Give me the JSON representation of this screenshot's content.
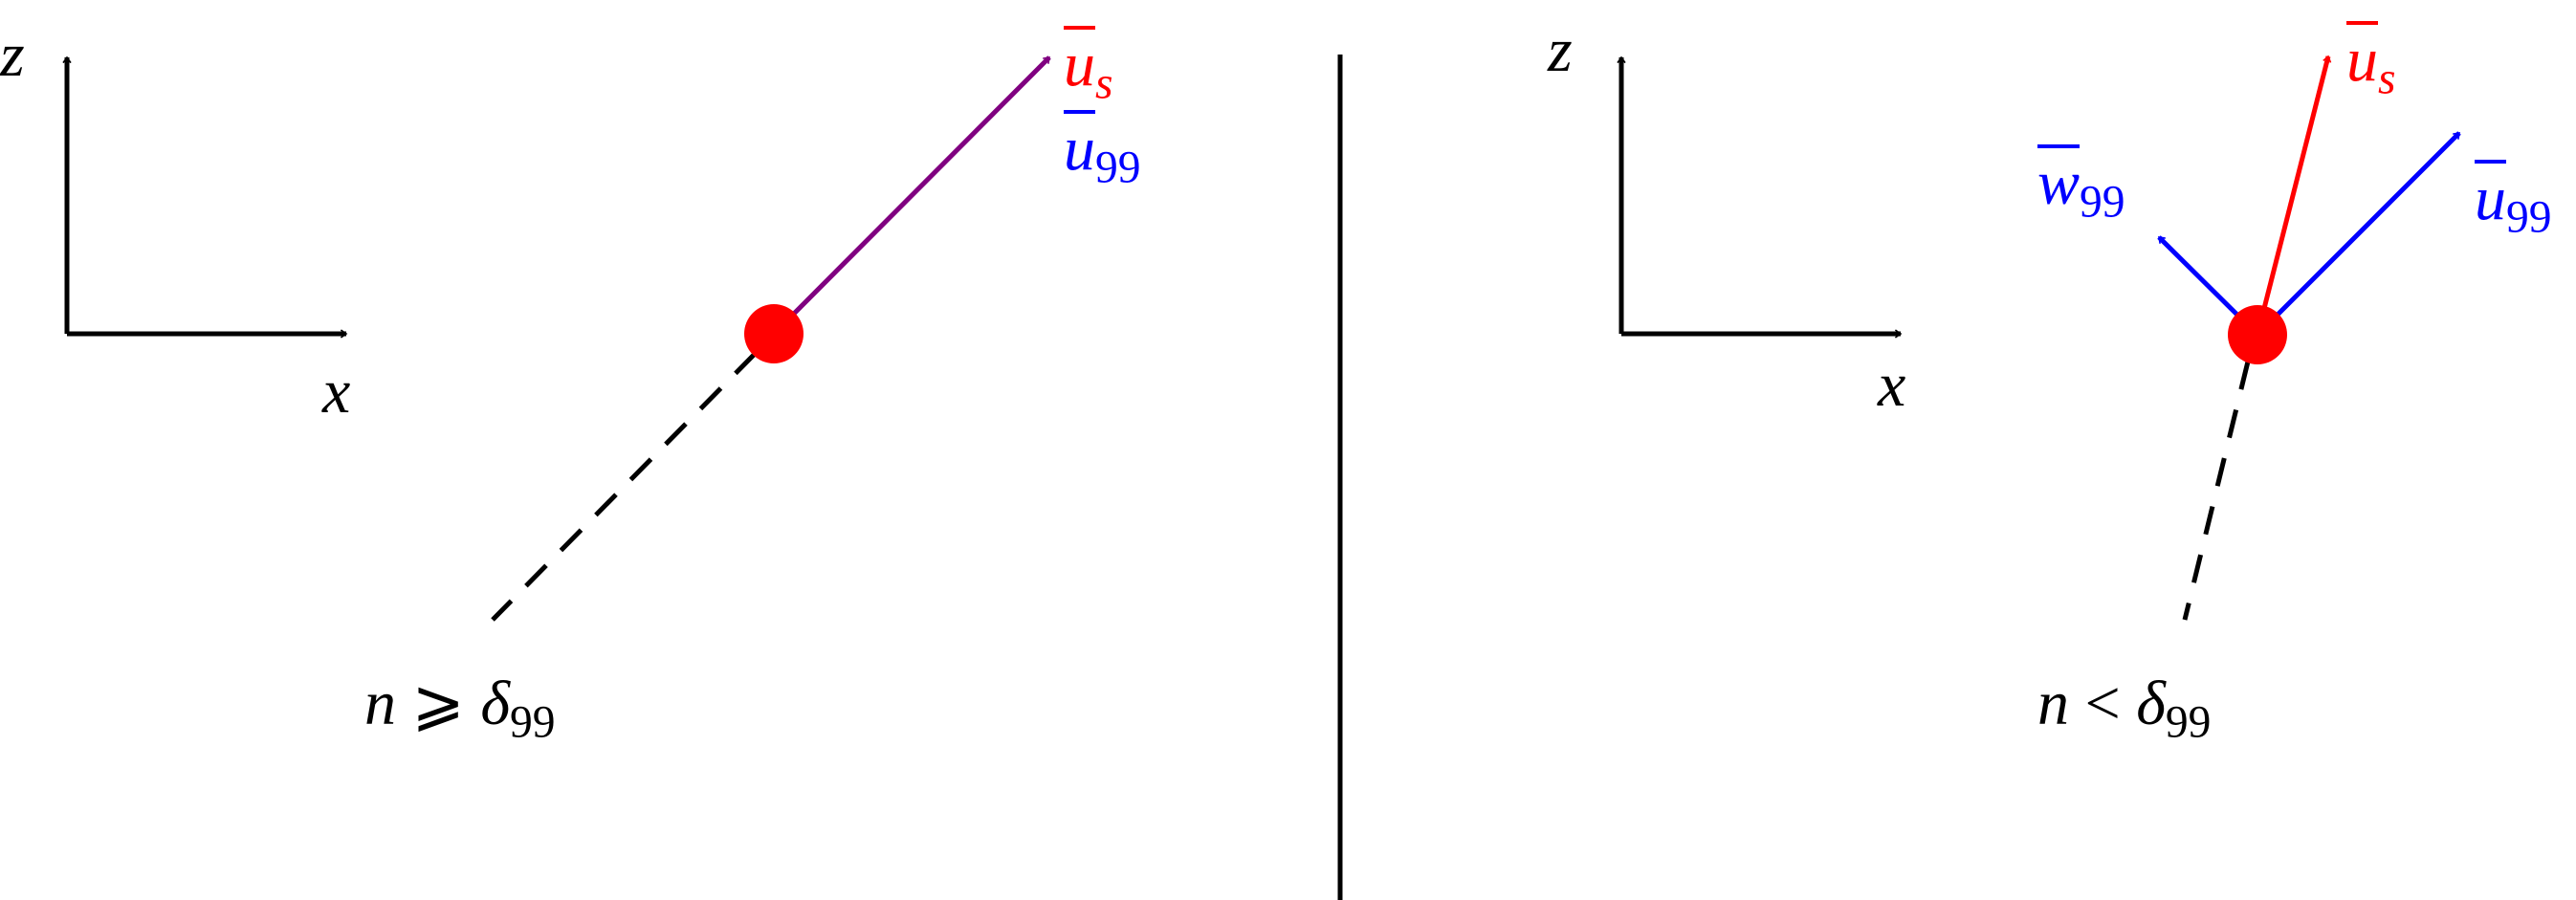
{
  "panels": [
    {
      "axes": {
        "z": "z",
        "x": "x"
      },
      "vectors": [
        {
          "base": "u",
          "sub": "s"
        },
        {
          "base": "u",
          "sub": "99"
        }
      ],
      "condition": {
        "lhs": "n",
        "relation": "⩾",
        "rhs": "δ",
        "rhs_sub": "99"
      }
    },
    {
      "axes": {
        "z": "z",
        "x": "x"
      },
      "vectors": [
        {
          "base": "w",
          "sub": "99"
        },
        {
          "base": "u",
          "sub": "s"
        },
        {
          "base": "u",
          "sub": "99"
        }
      ],
      "condition": {
        "lhs": "n",
        "relation": "<",
        "rhs": "δ",
        "rhs_sub": "99"
      }
    }
  ]
}
